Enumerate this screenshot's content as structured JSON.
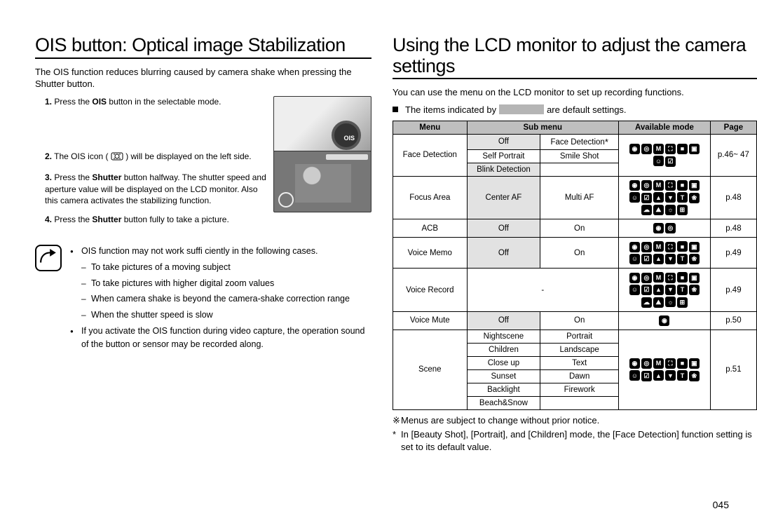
{
  "page_number": "045",
  "left": {
    "title": "OIS button: Optical image Stabilization",
    "intro": "The OIS function reduces blurring caused by camera shake when pressing the Shutter button.",
    "steps": [
      {
        "num": "1.",
        "before": "Press the ",
        "kw": "OIS",
        "after": " button in the selectable mode."
      },
      {
        "num": "2.",
        "before": "The OIS icon ( ",
        "kw": "",
        "after": " ) will be displayed on the left side."
      },
      {
        "num": "3.",
        "before": "Press the ",
        "kw": "Shutter",
        "after": " button halfway. The shutter speed and aperture value will be displayed on the LCD monitor. Also this camera activates the stabilizing function."
      },
      {
        "num": "4.",
        "before": "Press the ",
        "kw": "Shutter",
        "after": " button fully to take a picture."
      }
    ],
    "notes": {
      "top": "OIS function may not work suffi ciently in the following cases.",
      "sub": [
        "To take pictures of a moving subject",
        "To take pictures with higher digital zoom values",
        "When camera shake is beyond the camera-shake correction range",
        "When the shutter speed is slow"
      ],
      "bottom": "If you activate the OIS function during video capture, the operation sound of the button or sensor may be recorded along."
    }
  },
  "right": {
    "title": "Using the LCD monitor to adjust the camera settings",
    "intro": "You can use the menu on the LCD monitor to set up recording functions.",
    "defaults_pre": "The items indicated by",
    "defaults_post": "are default settings.",
    "table": {
      "head": [
        "Menu",
        "Sub menu",
        "Available mode",
        "Page"
      ],
      "rows": [
        {
          "menu": "Face Detection",
          "menu_rows": 3,
          "sub": [
            [
              "Off",
              "Face Detection*"
            ],
            [
              "Self Portrait",
              "Smile Shot"
            ],
            [
              "Blink Detection",
              ""
            ]
          ],
          "shaded": [
            0,
            2
          ],
          "mode_rows": 3,
          "icons": 8,
          "page": "p.46~ 47"
        },
        {
          "menu": "Focus Area",
          "menu_rows": 1,
          "sub": [
            [
              "Center AF",
              "Multi AF"
            ]
          ],
          "shaded": [
            0
          ],
          "icons": 16,
          "page": "p.48"
        },
        {
          "menu": "ACB",
          "menu_rows": 1,
          "sub": [
            [
              "Off",
              "On"
            ]
          ],
          "shaded": [
            0
          ],
          "icons": 2,
          "page": "p.48"
        },
        {
          "menu": "Voice Memo",
          "menu_rows": 1,
          "sub": [
            [
              "Off",
              "On"
            ]
          ],
          "shaded": [
            0
          ],
          "icons": 12,
          "page": "p.49"
        },
        {
          "menu": "Voice Record",
          "menu_rows": 1,
          "sub": [
            [
              "-",
              ""
            ]
          ],
          "span2": true,
          "icons": 16,
          "page": "p.49"
        },
        {
          "menu": "Voice Mute",
          "menu_rows": 1,
          "sub": [
            [
              "Off",
              "On"
            ]
          ],
          "shaded": [
            0
          ],
          "icons": 1,
          "page": "p.50"
        },
        {
          "menu": "Scene",
          "menu_rows": 6,
          "sub": [
            [
              "Nightscene",
              "Portrait"
            ],
            [
              "Children",
              "Landscape"
            ],
            [
              "Close up",
              "Text"
            ],
            [
              "Sunset",
              "Dawn"
            ],
            [
              "Backlight",
              "Firework"
            ],
            [
              "Beach&Snow",
              ""
            ]
          ],
          "shaded": [],
          "mode_rows": 6,
          "icons": 12,
          "page": "p.51"
        }
      ]
    },
    "foot1": "Menus are subject to change without prior notice.",
    "foot2": "In [Beauty Shot], [Portrait], and [Children] mode, the [Face Detection] function setting is set to its default value."
  }
}
